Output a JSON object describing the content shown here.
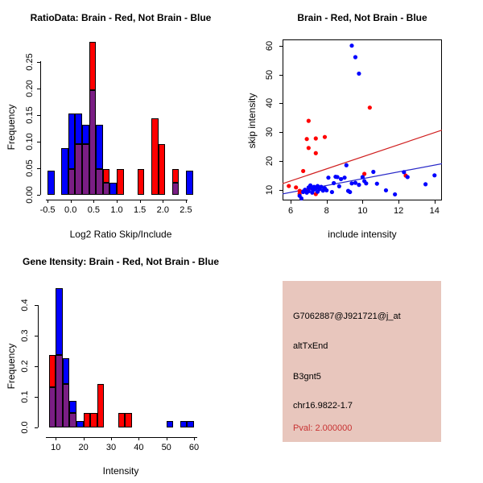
{
  "palette": {
    "blue": "#0000FF",
    "red": "#FF0000",
    "overlap": "#7A1E84"
  },
  "chart_data": [
    {
      "type": "bar",
      "subtype": "overlaid-histogram",
      "title": "RatioData: Brain - Red, Not Brain - Blue",
      "xlabel": "Log2 Ratio Skip/Include",
      "ylabel": "Frequency",
      "xlim": [
        -0.5,
        2.65
      ],
      "ylim": [
        0,
        0.29
      ],
      "grid": false,
      "bin_width": 0.15,
      "legend": {
        "red": "Brain",
        "blue": "Not Brain"
      },
      "xticks": [
        "-0.5",
        "0.0",
        "0.5",
        "1.0",
        "1.5",
        "2.0",
        "2.5"
      ],
      "yticks": [
        "0.00",
        "0.05",
        "0.10",
        "0.15",
        "0.20",
        "0.25"
      ],
      "bins": [
        {
          "start": -0.5,
          "blue": 0.045,
          "red": 0
        },
        {
          "start": -0.2,
          "blue": 0.087,
          "red": 0
        },
        {
          "start": -0.05,
          "blue": 0.153,
          "red": 0.048
        },
        {
          "start": 0.1,
          "blue": 0.153,
          "red": 0.095
        },
        {
          "start": 0.25,
          "blue": 0.131,
          "red": 0.095
        },
        {
          "start": 0.4,
          "blue": 0.196,
          "red": 0.287
        },
        {
          "start": 0.55,
          "blue": 0.131,
          "red": 0.048
        },
        {
          "start": 0.7,
          "blue": 0.022,
          "red": 0.048
        },
        {
          "start": 0.85,
          "blue": 0.022,
          "red": 0
        },
        {
          "start": 1.0,
          "blue": 0,
          "red": 0.048
        },
        {
          "start": 1.45,
          "blue": 0,
          "red": 0.048
        },
        {
          "start": 1.75,
          "blue": 0,
          "red": 0.143
        },
        {
          "start": 1.9,
          "blue": 0,
          "red": 0.095
        },
        {
          "start": 2.2,
          "blue": 0.022,
          "red": 0.048
        },
        {
          "start": 2.5,
          "blue": 0.045,
          "red": 0
        }
      ]
    },
    {
      "type": "scatter",
      "title": "Brain - Red, Not Brain - Blue",
      "xlabel": "include intensity",
      "ylabel": "skip intensity",
      "xlim": [
        5.5,
        14.8
      ],
      "ylim": [
        6,
        62
      ],
      "grid": false,
      "xticks": [
        "6",
        "8",
        "10",
        "12",
        "14"
      ],
      "yticks": [
        "10",
        "20",
        "30",
        "40",
        "50",
        "60"
      ],
      "series": [
        {
          "name": "Brain",
          "color": "#FF0000",
          "points": [
            [
              5.9,
              11.3
            ],
            [
              6.3,
              10.8
            ],
            [
              6.5,
              9.6
            ],
            [
              6.5,
              8.6
            ],
            [
              6.7,
              16.5
            ],
            [
              6.9,
              27.6
            ],
            [
              7.0,
              33.9
            ],
            [
              7.0,
              24.5
            ],
            [
              7.0,
              10.4
            ],
            [
              7.4,
              27.8
            ],
            [
              7.4,
              22.7
            ],
            [
              7.4,
              8.5
            ],
            [
              7.6,
              10.7
            ],
            [
              7.9,
              28.3
            ],
            [
              10.1,
              15.5
            ],
            [
              10.4,
              38.5
            ],
            [
              12.4,
              14.9
            ]
          ]
        },
        {
          "name": "Not Brain",
          "color": "#0000FF",
          "points": [
            [
              6.5,
              7.9
            ],
            [
              6.6,
              7.0
            ],
            [
              6.7,
              9.2
            ],
            [
              6.8,
              10.0
            ],
            [
              6.9,
              9.0
            ],
            [
              7.0,
              10.8
            ],
            [
              7.0,
              9.5
            ],
            [
              7.1,
              11.5
            ],
            [
              7.2,
              10.3
            ],
            [
              7.2,
              9.0
            ],
            [
              7.3,
              11.0
            ],
            [
              7.3,
              10.0
            ],
            [
              7.4,
              10.5
            ],
            [
              7.5,
              11.3
            ],
            [
              7.5,
              9.3
            ],
            [
              7.6,
              10.2
            ],
            [
              7.7,
              11.0
            ],
            [
              7.8,
              9.7
            ],
            [
              7.9,
              10.5
            ],
            [
              8.0,
              9.8
            ],
            [
              8.1,
              14.2
            ],
            [
              8.3,
              9.2
            ],
            [
              8.4,
              12.3
            ],
            [
              8.5,
              14.5
            ],
            [
              8.6,
              14.4
            ],
            [
              8.7,
              11.2
            ],
            [
              8.8,
              13.7
            ],
            [
              9.0,
              14.2
            ],
            [
              9.1,
              18.5
            ],
            [
              9.2,
              9.6
            ],
            [
              9.3,
              9.2
            ],
            [
              9.4,
              12.2
            ],
            [
              9.4,
              60.0
            ],
            [
              9.6,
              56.0
            ],
            [
              9.6,
              12.4
            ],
            [
              9.8,
              50.3
            ],
            [
              9.8,
              11.7
            ],
            [
              10.0,
              14.4
            ],
            [
              10.1,
              13.0
            ],
            [
              10.2,
              12.2
            ],
            [
              10.6,
              16.2
            ],
            [
              10.8,
              12.1
            ],
            [
              11.3,
              9.8
            ],
            [
              11.8,
              8.4
            ],
            [
              12.3,
              16.1
            ],
            [
              12.5,
              14.4
            ],
            [
              13.5,
              11.9
            ],
            [
              14.0,
              15.0
            ],
            [
              14.6,
              13.9
            ]
          ]
        }
      ],
      "lines": [
        {
          "name": "brain-fit",
          "color": "#D02020",
          "x1": 5.5,
          "y1": 12.0,
          "x2": 14.8,
          "y2": 31.5
        },
        {
          "name": "not-brain-fit",
          "color": "#2828C8",
          "x1": 5.5,
          "y1": 8.5,
          "x2": 14.8,
          "y2": 19.5
        }
      ]
    },
    {
      "type": "bar",
      "subtype": "overlaid-histogram",
      "title": "Gene Itensity: Brain - Red, Not Brain - Blue",
      "xlabel": "Intensity",
      "ylabel": "Frequency",
      "xlim": [
        6,
        62
      ],
      "ylim": [
        0,
        0.46
      ],
      "grid": false,
      "bin_width": 2.5,
      "legend": {
        "red": "Brain",
        "blue": "Not Brain"
      },
      "xticks": [
        "10",
        "20",
        "30",
        "40",
        "50",
        "60"
      ],
      "yticks": [
        "0.0",
        "0.1",
        "0.2",
        "0.3",
        "0.4"
      ],
      "bins": [
        {
          "start": 7.5,
          "blue": 0.133,
          "red": 0.238
        },
        {
          "start": 10,
          "blue": 0.455,
          "red": 0.238
        },
        {
          "start": 12.5,
          "blue": 0.227,
          "red": 0.143
        },
        {
          "start": 15,
          "blue": 0.087,
          "red": 0.048
        },
        {
          "start": 17.5,
          "blue": 0.022,
          "red": 0
        },
        {
          "start": 20,
          "blue": 0,
          "red": 0.048
        },
        {
          "start": 22.5,
          "blue": 0,
          "red": 0.048
        },
        {
          "start": 25,
          "blue": 0,
          "red": 0.143
        },
        {
          "start": 32.5,
          "blue": 0,
          "red": 0.048
        },
        {
          "start": 35,
          "blue": 0,
          "red": 0.048
        },
        {
          "start": 50,
          "blue": 0.022,
          "red": 0
        },
        {
          "start": 55,
          "blue": 0.022,
          "red": 0
        },
        {
          "start": 57.5,
          "blue": 0.022,
          "red": 0
        }
      ]
    }
  ],
  "info_box": {
    "background": "#E8C6BD",
    "lines": [
      {
        "label": "probe-id",
        "text": "G7062887@J921721@j_at",
        "color": "#000000"
      },
      {
        "label": "splice-event",
        "text": "altTxEnd",
        "color": "#000000"
      },
      {
        "label": "gene-name",
        "text": "B3gnt5",
        "color": "#000000"
      },
      {
        "label": "genomic-location",
        "text": "chr16.9822-1.7",
        "color": "#000000"
      },
      {
        "label": "p-value",
        "text": "Pval: 2.000000",
        "color": "#C83232"
      }
    ]
  }
}
